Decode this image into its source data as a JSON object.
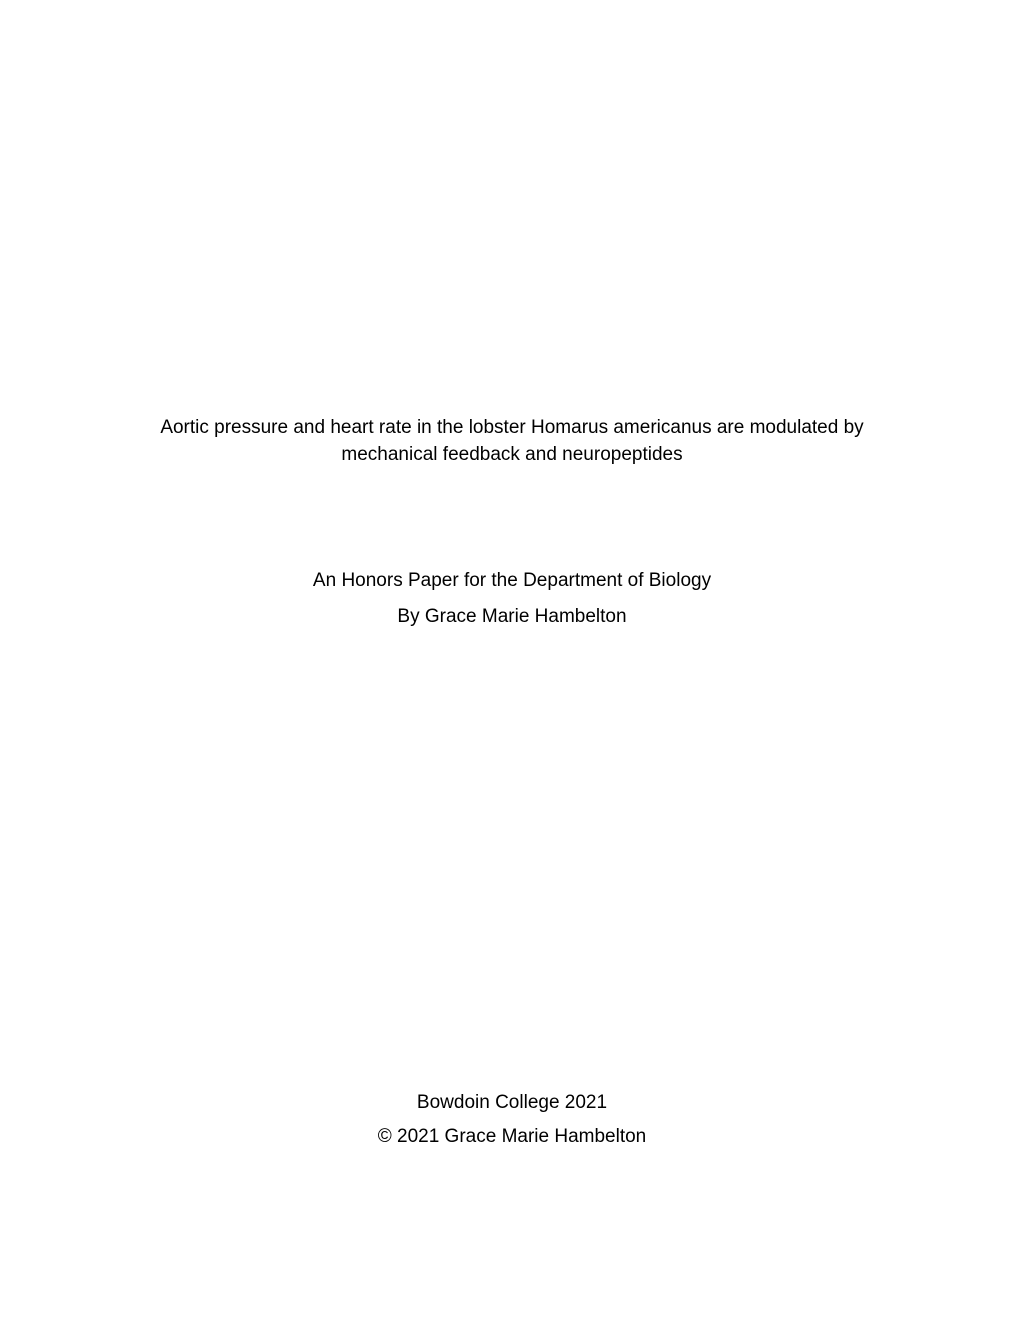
{
  "title": {
    "line1": "Aortic pressure and heart rate in the lobster Homarus americanus are modulated by",
    "line2": "mechanical feedback and neuropeptides"
  },
  "subtitle": {
    "line1": "An Honors Paper for the Department of Biology",
    "line2": "By Grace Marie Hambelton"
  },
  "footer": {
    "institution": "Bowdoin College 2021",
    "copyright": "© 2021 Grace Marie Hambelton"
  }
}
